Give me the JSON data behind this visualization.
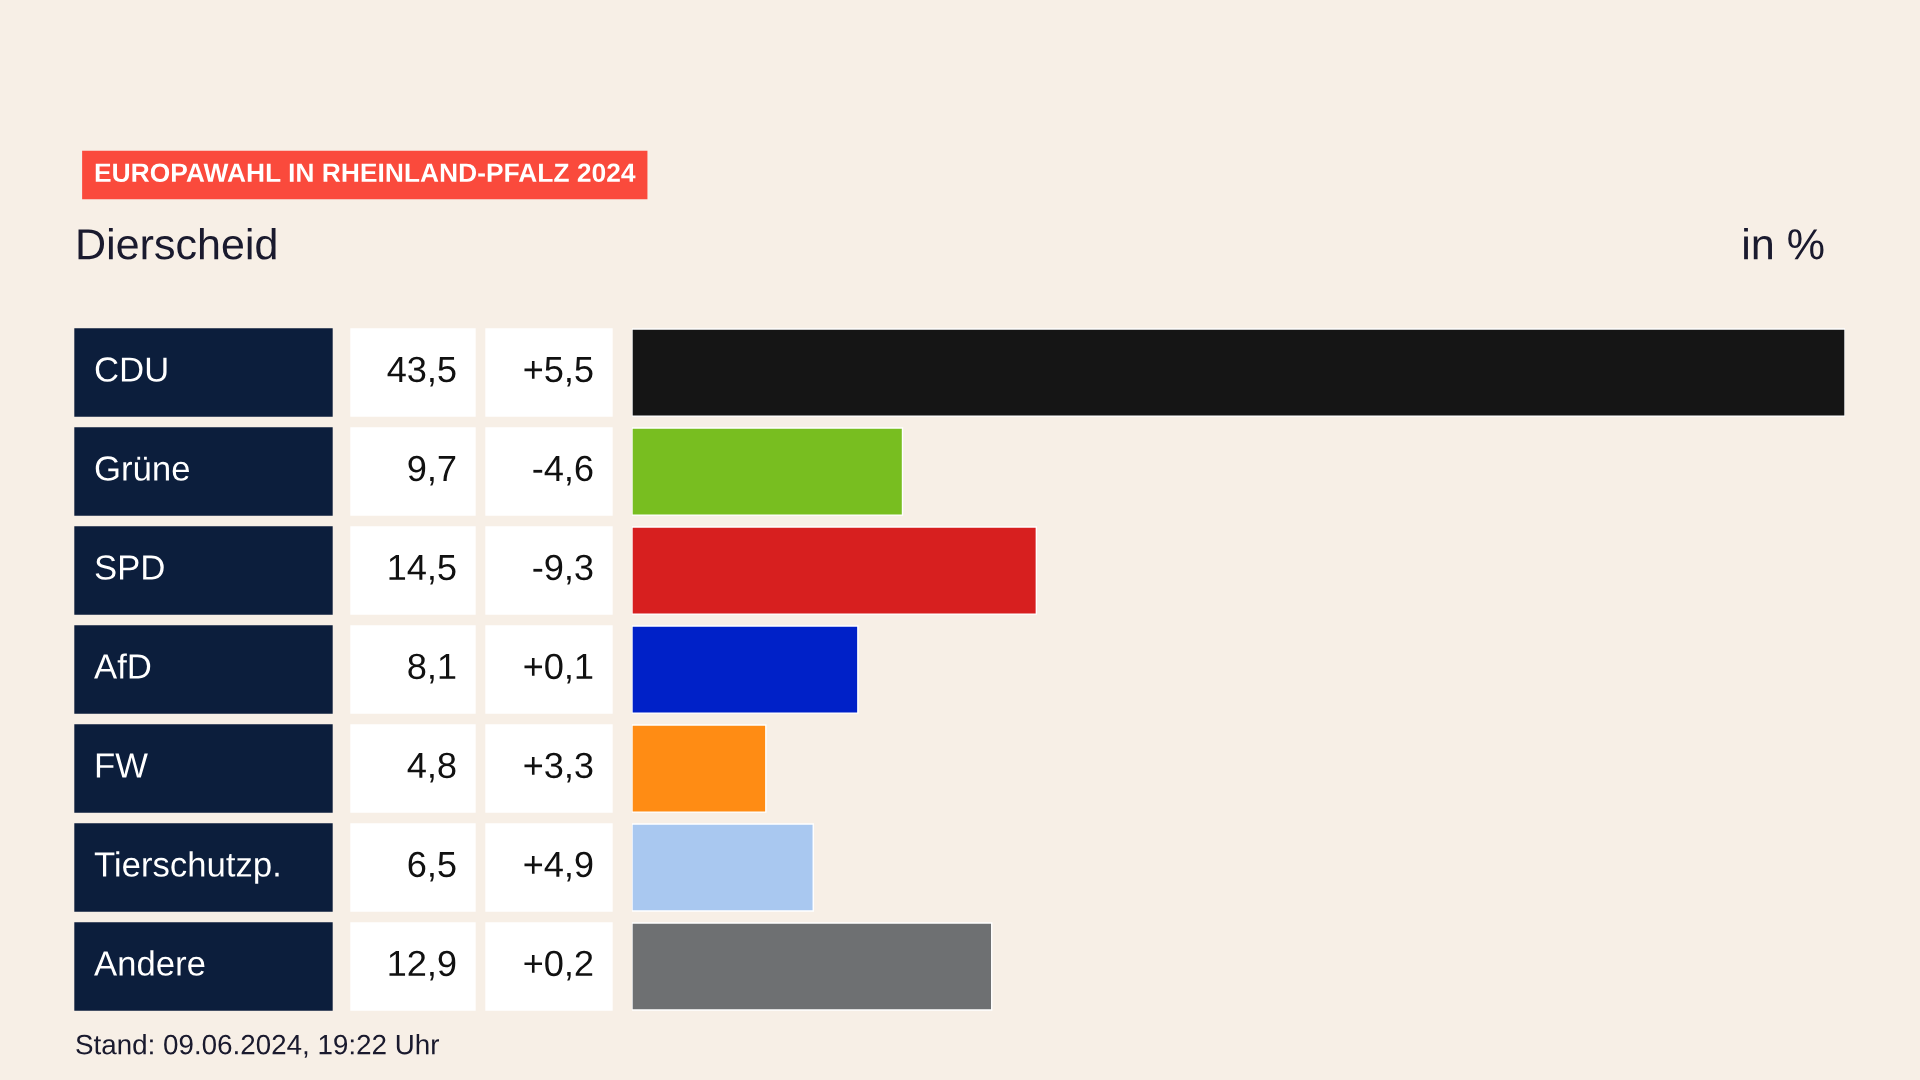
{
  "chart_data": {
    "type": "bar",
    "orientation": "horizontal",
    "title": "EUROPAWAHL IN RHEINLAND-PFALZ 2024",
    "subtitle": "Dierscheid",
    "xlabel": "in %",
    "categories": [
      "CDU",
      "Grüne",
      "SPD",
      "AfD",
      "FW",
      "Tierschutzp.",
      "Andere"
    ],
    "values": [
      43.5,
      9.7,
      14.5,
      8.1,
      4.8,
      6.5,
      12.9
    ],
    "colors": [
      "#151515",
      "#78be20",
      "#d71f1f",
      "#0021c8",
      "#ff8c14",
      "#a9c8f0",
      "#6e7072"
    ],
    "value_labels": [
      "43,5",
      "9,7",
      "14,5",
      "8,1",
      "4,8",
      "6,5",
      "12,9"
    ],
    "xlim": [
      0,
      43.5
    ],
    "annotations": [
      "+5,5",
      "-4,6",
      "-9,3",
      "+0,1",
      "+3,3",
      "+4,9",
      "+0,2",
      "Stand: 09.06.2024, 19:22 Uhr"
    ]
  }
}
